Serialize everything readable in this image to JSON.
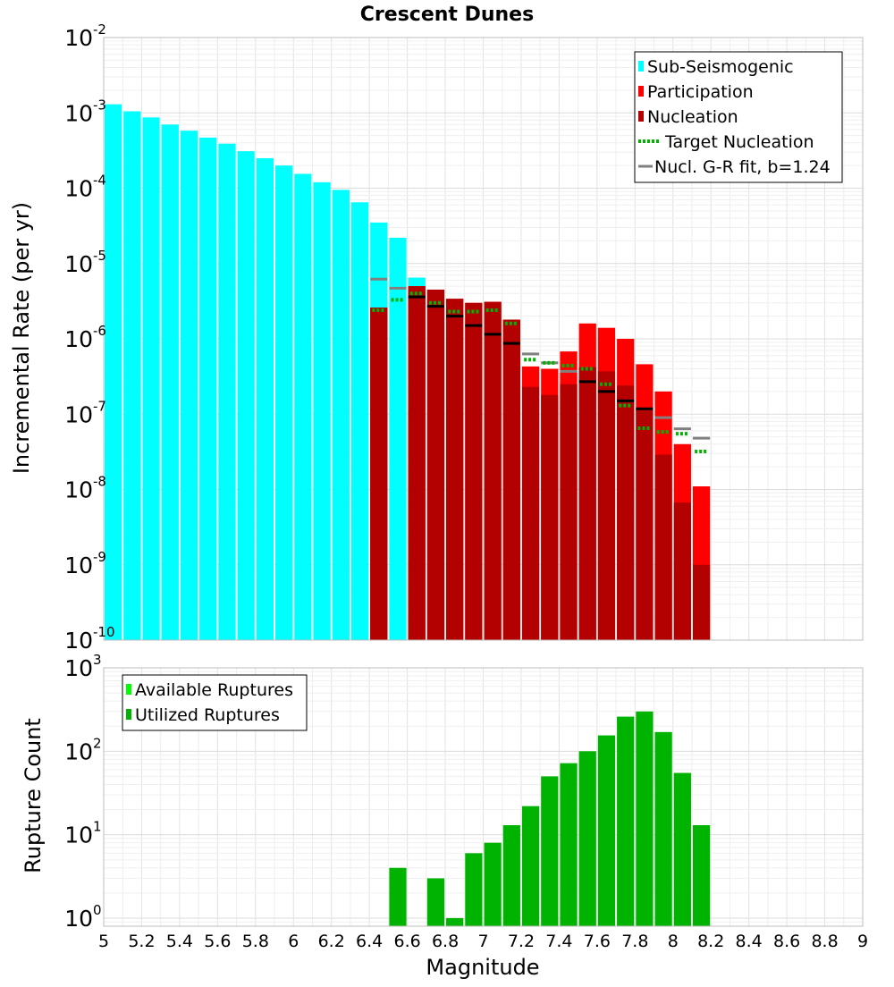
{
  "chart_data": [
    {
      "type": "bar",
      "title": "Crescent Dunes",
      "xlabel": "",
      "ylabel": "Incremental Rate (per yr)",
      "yscale": "log",
      "ylim": [
        1e-10,
        0.01
      ],
      "xlim": [
        5,
        9
      ],
      "bin_width": 0.1,
      "grid": true,
      "legend_position": "top-right",
      "y_tick_labels": [
        {
          "base": "10",
          "exp": "-10"
        },
        {
          "base": "10",
          "exp": "-9"
        },
        {
          "base": "10",
          "exp": "-8"
        },
        {
          "base": "10",
          "exp": "-7"
        },
        {
          "base": "10",
          "exp": "-6"
        },
        {
          "base": "10",
          "exp": "-5"
        },
        {
          "base": "10",
          "exp": "-4"
        },
        {
          "base": "10",
          "exp": "-3"
        },
        {
          "base": "10",
          "exp": "-2"
        }
      ],
      "legend": [
        {
          "label": "Sub-Seismogenic",
          "color": "#00ffff",
          "kind": "bar"
        },
        {
          "label": "Participation",
          "color": "#ff0000",
          "kind": "bar"
        },
        {
          "label": "Nucleation",
          "color": "#b30000",
          "kind": "bar"
        },
        {
          "label": "Target Nucleation",
          "color": "#00b300",
          "kind": "dotted"
        },
        {
          "label": "Nucl. G-R fit, b=1.24",
          "color": "#808080",
          "kind": "line"
        }
      ],
      "colors": {
        "sub_seismogenic": "#00ffff",
        "participation": "#ff0000",
        "nucleation": "#b30000",
        "target": "#00b300",
        "gr_fit": "#808080",
        "gr_fit_dark": "#000000"
      },
      "series": [
        {
          "name": "Sub-Seismogenic",
          "x": [
            5.05,
            5.15,
            5.25,
            5.35,
            5.45,
            5.55,
            5.65,
            5.75,
            5.85,
            5.95,
            6.05,
            6.15,
            6.25,
            6.35,
            6.45,
            6.55,
            6.65
          ],
          "values": [
            0.0013,
            0.00105,
            0.00087,
            0.0007,
            0.00058,
            0.00047,
            0.00039,
            0.00031,
            0.00025,
            0.0002,
            0.000155,
            0.00012,
            9.5e-05,
            6.5e-05,
            3.5e-05,
            2.2e-05,
            6.5e-06
          ]
        },
        {
          "name": "Participation",
          "x": [
            6.45,
            6.65,
            6.75,
            6.85,
            6.95,
            7.05,
            7.15,
            7.25,
            7.35,
            7.45,
            7.55,
            7.65,
            7.75,
            7.85,
            7.95,
            8.05,
            8.15
          ],
          "values": [
            2.6e-06,
            5e-06,
            4.5e-06,
            3.4e-06,
            3e-06,
            3.1e-06,
            1.8e-06,
            4.3e-07,
            4e-07,
            6.8e-07,
            1.6e-06,
            1.4e-06,
            1e-06,
            4.6e-07,
            2e-07,
            4e-08,
            1.1e-08
          ]
        },
        {
          "name": "Nucleation",
          "x": [
            6.45,
            6.65,
            6.75,
            6.85,
            6.95,
            7.05,
            7.15,
            7.25,
            7.35,
            7.45,
            7.55,
            7.65,
            7.75,
            7.85,
            7.95,
            8.05,
            8.15
          ],
          "values": [
            2.6e-06,
            5e-06,
            4.5e-06,
            3.4e-06,
            3e-06,
            3.1e-06,
            1.8e-06,
            2.3e-07,
            1.8e-07,
            2.5e-07,
            4.2e-07,
            3.7e-07,
            2.4e-07,
            1.2e-07,
            2.9e-08,
            6.7e-09,
            1e-09
          ]
        },
        {
          "name": "Target Nucleation",
          "x": [
            6.45,
            6.55,
            6.65,
            6.75,
            6.85,
            6.95,
            7.05,
            7.15,
            7.25,
            7.35,
            7.45,
            7.55,
            7.65,
            7.75,
            7.85,
            7.95,
            8.05,
            8.15
          ],
          "values": [
            2.4e-06,
            3.3e-06,
            4e-06,
            3e-06,
            2.3e-06,
            2.3e-06,
            2.4e-06,
            1.6e-06,
            5.3e-07,
            4.8e-07,
            4.4e-07,
            4e-07,
            2.5e-07,
            1.3e-07,
            6.5e-08,
            5.8e-08,
            5.5e-08,
            3.2e-08
          ]
        },
        {
          "name": "Nucl. G-R fit, b=1.24",
          "x": [
            6.45,
            6.55,
            6.65,
            6.75,
            6.85,
            6.95,
            7.05,
            7.15,
            7.25,
            7.35,
            7.45,
            7.55,
            7.65,
            7.75,
            7.85,
            7.95,
            8.05,
            8.15
          ],
          "values": [
            6.2e-06,
            4.7e-06,
            3.6e-06,
            2.7e-06,
            2e-06,
            1.5e-06,
            1.15e-06,
            8.7e-07,
            6.3e-07,
            4.8e-07,
            3.7e-07,
            2.7e-07,
            2e-07,
            1.5e-07,
            1.18e-07,
            9e-08,
            6.4e-08,
            4.8e-08
          ]
        }
      ]
    },
    {
      "type": "bar",
      "title": "",
      "xlabel": "Magnitude",
      "ylabel": "Rupture Count",
      "yscale": "log",
      "ylim": [
        0.8,
        1000
      ],
      "xlim": [
        5,
        9
      ],
      "bin_width": 0.1,
      "grid": true,
      "legend_position": "top-left",
      "x_tick_labels": [
        "5",
        "5.2",
        "5.4",
        "5.6",
        "5.8",
        "6",
        "6.2",
        "6.4",
        "6.6",
        "6.8",
        "7",
        "7.2",
        "7.4",
        "7.6",
        "7.8",
        "8",
        "8.2",
        "8.4",
        "8.6",
        "8.8",
        "9"
      ],
      "y_tick_labels": [
        {
          "base": "10",
          "exp": "0"
        },
        {
          "base": "10",
          "exp": "1"
        },
        {
          "base": "10",
          "exp": "2"
        },
        {
          "base": "10",
          "exp": "3"
        }
      ],
      "legend": [
        {
          "label": "Available Ruptures",
          "color": "#00ff00",
          "kind": "bar"
        },
        {
          "label": "Utilized Ruptures",
          "color": "#00b300",
          "kind": "bar"
        }
      ],
      "colors": {
        "available": "#00ff00",
        "utilized": "#00b300"
      },
      "series": [
        {
          "name": "Utilized Ruptures",
          "x": [
            6.55,
            6.75,
            6.85,
            6.95,
            7.05,
            7.15,
            7.25,
            7.35,
            7.45,
            7.55,
            7.65,
            7.75,
            7.85,
            7.95,
            8.05,
            8.15
          ],
          "values": [
            4,
            3,
            1,
            6,
            8,
            13,
            22,
            50,
            72,
            100,
            155,
            260,
            300,
            170,
            55,
            13
          ]
        }
      ]
    }
  ]
}
